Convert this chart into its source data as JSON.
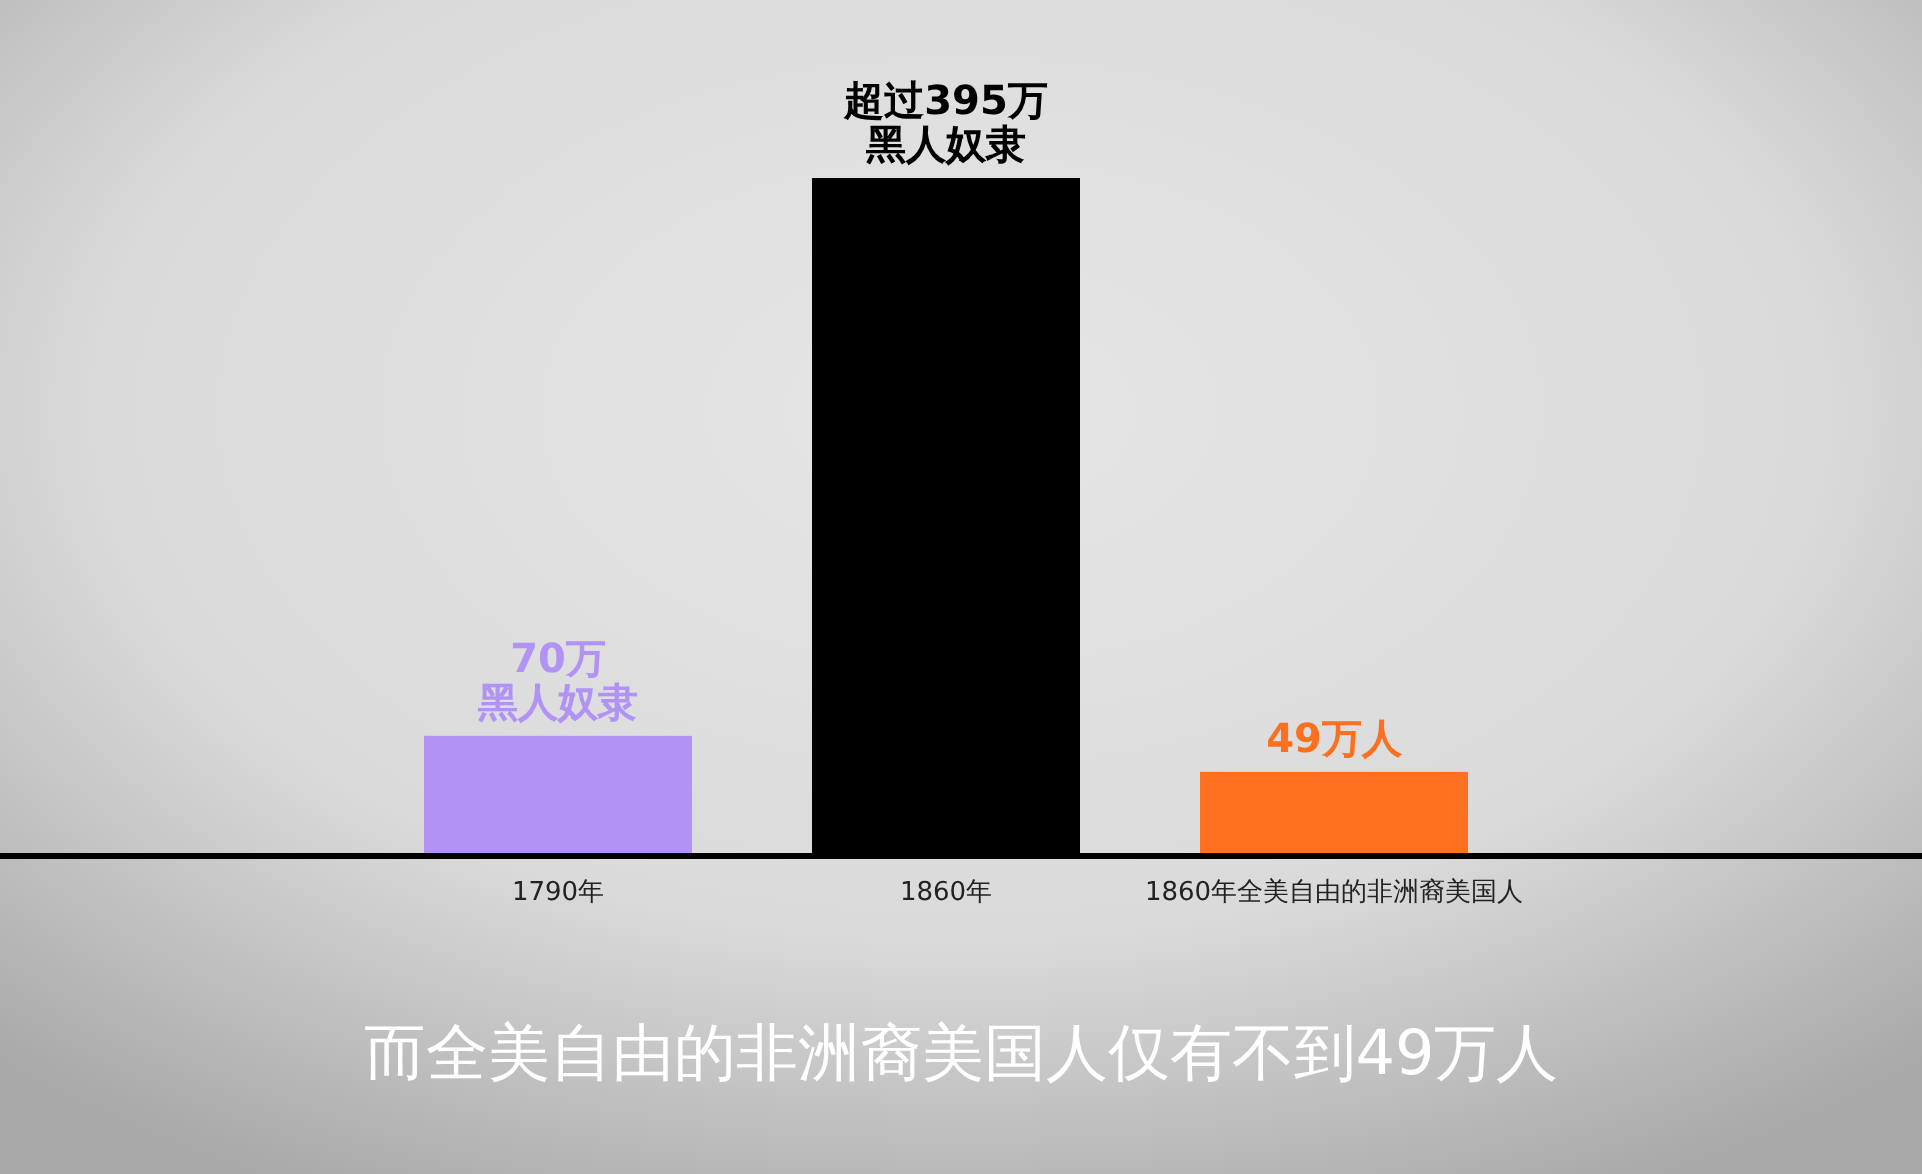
{
  "chart_data": {
    "type": "bar",
    "categories": [
      "1790年",
      "1860年",
      "1860年全美自由的非洲裔美国人"
    ],
    "values": [
      70,
      395,
      49
    ],
    "colors": [
      "#b093f5",
      "#000000",
      "#fc7020"
    ],
    "value_labels": [
      "70万黑人奴隶",
      "超过395万黑人奴隶",
      "49万人"
    ],
    "annotations": [
      "而全美自由的非洲裔美国人仅有不到49万人"
    ]
  }
}
